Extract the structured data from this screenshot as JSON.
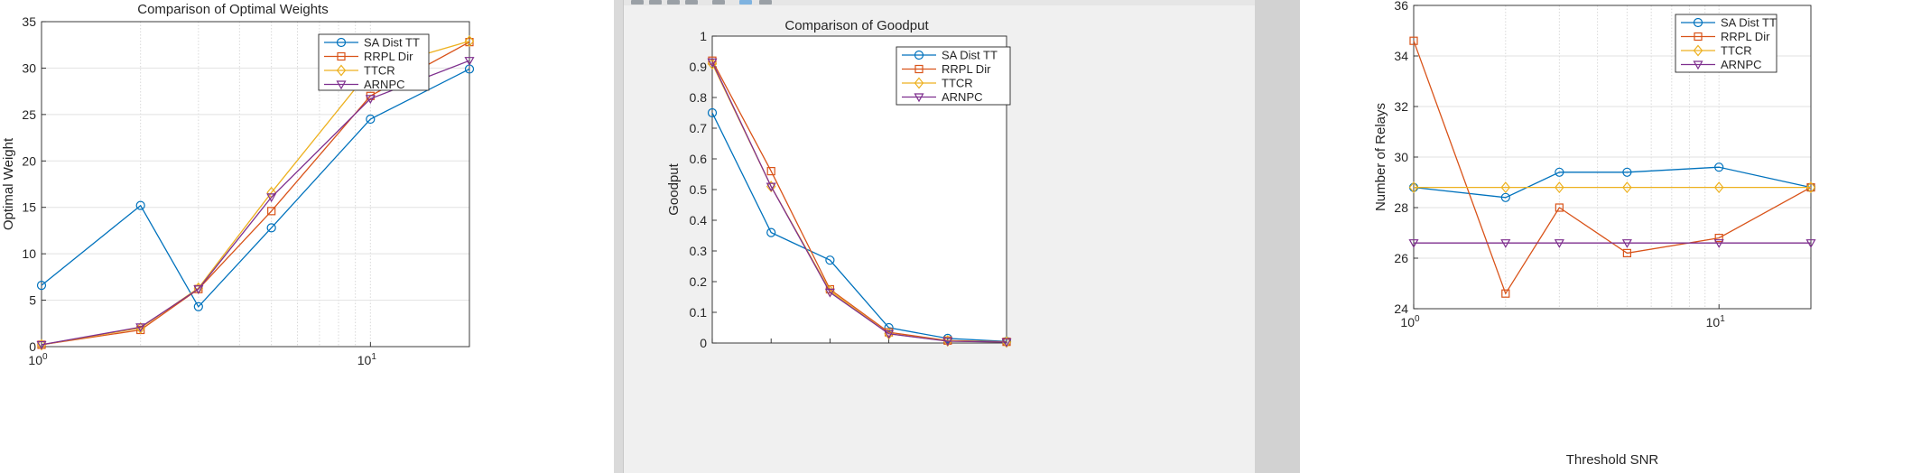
{
  "colors": {
    "SA Dist TT": "#0072BD",
    "RRPL Dir": "#D95319",
    "TTCR": "#EDB120",
    "ARNPC": "#7E2F8E"
  },
  "markers": {
    "SA Dist TT": "circle",
    "RRPL Dir": "square",
    "TTCR": "diamond",
    "ARNPC": "triangle-down"
  },
  "chart_data": [
    {
      "type": "line",
      "title": "Comparison of Optimal Weights",
      "xlabel": "",
      "ylabel": "Optimal Weight",
      "xscale": "log",
      "xlim": [
        1,
        20
      ],
      "ylim": [
        0,
        35
      ],
      "grid": true,
      "legend": "top-right",
      "yticks": [
        0,
        5,
        10,
        15,
        20,
        25,
        30,
        35
      ],
      "xticks": [
        {
          "base": "10",
          "exp": "0",
          "value": 1
        },
        {
          "base": "10",
          "exp": "1",
          "value": 10
        }
      ],
      "x": [
        1,
        2,
        3,
        5,
        10,
        20
      ],
      "series": [
        {
          "name": "SA Dist TT",
          "values": [
            6.6,
            15.2,
            4.3,
            12.8,
            24.5,
            29.9
          ]
        },
        {
          "name": "RRPL Dir",
          "values": [
            0.2,
            1.8,
            6.2,
            14.6,
            27.0,
            32.8
          ]
        },
        {
          "name": "TTCR",
          "values": [
            0.2,
            2.0,
            6.3,
            16.6,
            29.8,
            32.9
          ]
        },
        {
          "name": "ARNPC",
          "values": [
            0.2,
            2.1,
            6.2,
            16.1,
            26.7,
            30.8
          ]
        }
      ]
    },
    {
      "type": "line",
      "title": "Comparison of Goodput",
      "xlabel": "",
      "ylabel": "Goodput",
      "xscale": "linear",
      "xlim": [
        0,
        10
      ],
      "ylim": [
        0,
        1
      ],
      "grid": false,
      "legend": "top-right",
      "yticks": [
        0,
        0.1,
        0.2,
        0.3,
        0.4,
        0.5,
        0.6,
        0.7,
        0.8,
        0.9,
        1
      ],
      "x": [
        0,
        2,
        4,
        6,
        8,
        10
      ],
      "series": [
        {
          "name": "SA Dist TT",
          "values": [
            0.75,
            0.36,
            0.27,
            0.05,
            0.015,
            0.005
          ]
        },
        {
          "name": "RRPL Dir",
          "values": [
            0.92,
            0.56,
            0.175,
            0.035,
            0.008,
            0.004
          ]
        },
        {
          "name": "TTCR",
          "values": [
            0.91,
            0.51,
            0.17,
            0.03,
            0.007,
            0.003
          ]
        },
        {
          "name": "ARNPC",
          "values": [
            0.915,
            0.51,
            0.165,
            0.03,
            0.006,
            0.003
          ]
        }
      ]
    },
    {
      "type": "line",
      "title": "",
      "xlabel": "Threshold SNR",
      "ylabel": "Number of Relays",
      "xscale": "log",
      "xlim": [
        1,
        20
      ],
      "ylim": [
        24,
        36
      ],
      "grid": true,
      "legend": "top-right",
      "yticks": [
        24,
        26,
        28,
        30,
        32,
        34,
        36
      ],
      "xticks": [
        {
          "base": "10",
          "exp": "0",
          "value": 1
        },
        {
          "base": "10",
          "exp": "1",
          "value": 10
        }
      ],
      "x": [
        1,
        2,
        3,
        5,
        10,
        20
      ],
      "series": [
        {
          "name": "SA Dist TT",
          "values": [
            28.8,
            28.4,
            29.4,
            29.4,
            29.6,
            28.8
          ]
        },
        {
          "name": "RRPL Dir",
          "values": [
            34.6,
            24.6,
            28.0,
            26.2,
            26.8,
            28.8
          ]
        },
        {
          "name": "TTCR",
          "values": [
            28.8,
            28.8,
            28.8,
            28.8,
            28.8,
            28.8
          ]
        },
        {
          "name": "ARNPC",
          "values": [
            26.6,
            26.6,
            26.6,
            26.6,
            26.6,
            26.6
          ]
        }
      ]
    }
  ]
}
